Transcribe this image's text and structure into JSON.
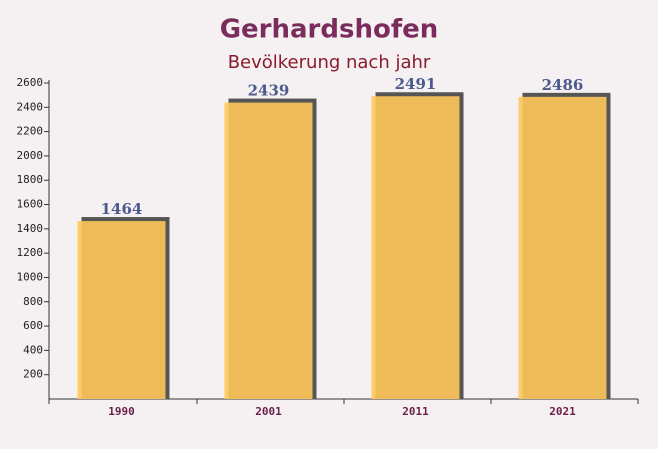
{
  "chart_data": {
    "type": "bar",
    "title": "Gerhardshofen",
    "subtitle": "Bevölkerung nach jahr",
    "categories": [
      "1990",
      "2001",
      "2011",
      "2021"
    ],
    "values": [
      1464,
      2439,
      2491,
      2486
    ],
    "color": "#ffc65a",
    "ylim": [
      0,
      2600
    ],
    "yticks": [
      200,
      400,
      600,
      800,
      1000,
      1200,
      1400,
      1600,
      1800,
      2000,
      2200,
      2400,
      2600
    ],
    "grid": false
  }
}
